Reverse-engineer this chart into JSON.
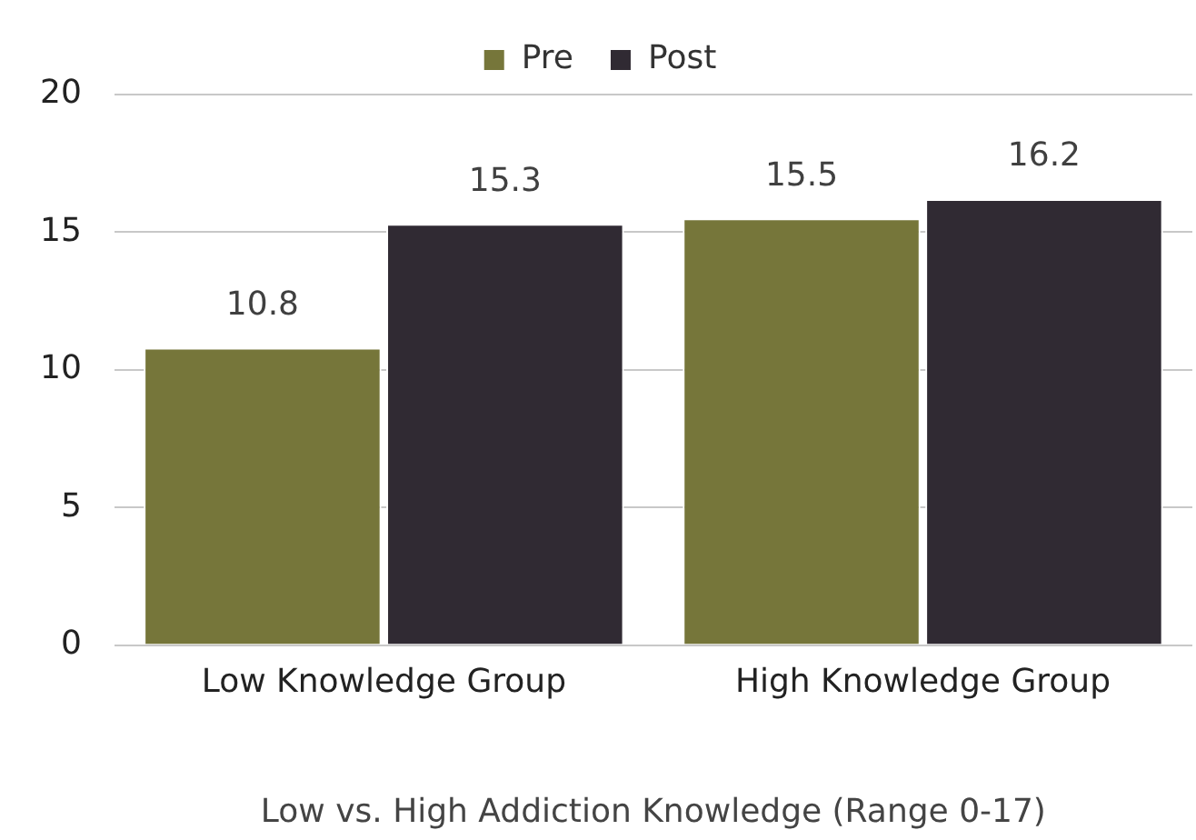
{
  "chart_data": {
    "type": "bar",
    "xlabel": "Low vs. High Addiction Knowledge (Range 0-17)",
    "categories": [
      "Low Knowledge Group",
      "High Knowledge Group"
    ],
    "series": [
      {
        "name": "Pre",
        "color": "#76763a",
        "values": [
          10.8,
          15.5
        ]
      },
      {
        "name": "Post",
        "color": "#302a33",
        "values": [
          15.3,
          16.2
        ]
      }
    ],
    "ylim": [
      0,
      20
    ],
    "yticks": [
      0,
      5,
      10,
      15,
      20
    ],
    "grid": "y",
    "legend": "top",
    "data_labels": true
  }
}
